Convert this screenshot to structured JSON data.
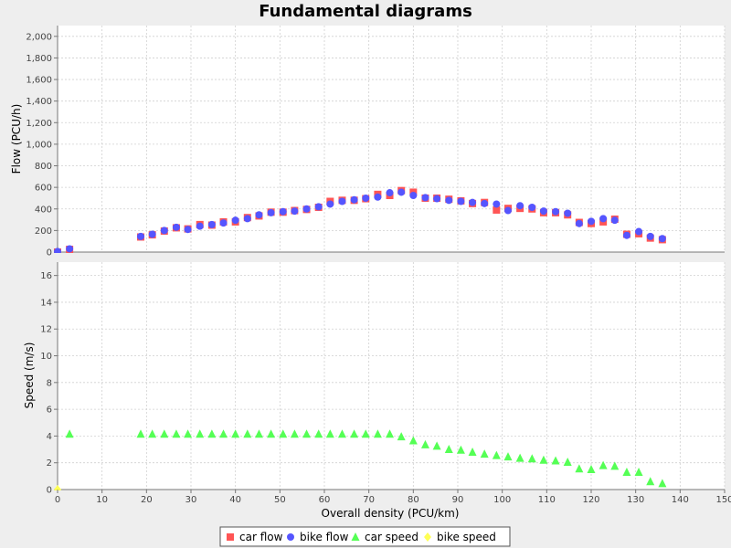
{
  "chart_data": [
    {
      "type": "scatter",
      "title": "Fundamental diagrams",
      "xlabel": "Overall density (PCU/km)",
      "ylabel": "Flow (PCU/h)",
      "xlim": [
        0,
        150
      ],
      "ylim": [
        0,
        2100
      ],
      "x_ticks": [
        "0",
        "10",
        "20",
        "30",
        "40",
        "50",
        "60",
        "70",
        "80",
        "90",
        "100",
        "110",
        "120",
        "130",
        "140",
        "150"
      ],
      "y_ticks": [
        "0",
        "200",
        "400",
        "600",
        "800",
        "1,000",
        "1,200",
        "1,400",
        "1,600",
        "1,800",
        "2,000"
      ],
      "grid": true,
      "series": [
        {
          "name": "car flow",
          "color": "#ff5555",
          "marker": "square",
          "points": [
            [
              0,
              0
            ],
            [
              2.7,
              25
            ],
            [
              18.7,
              140
            ],
            [
              21.3,
              160
            ],
            [
              24,
              195
            ],
            [
              26.7,
              225
            ],
            [
              29.3,
              215
            ],
            [
              32,
              255
            ],
            [
              34.7,
              250
            ],
            [
              37.3,
              280
            ],
            [
              40,
              280
            ],
            [
              42.7,
              320
            ],
            [
              45.3,
              335
            ],
            [
              48,
              370
            ],
            [
              50.7,
              370
            ],
            [
              53.3,
              385
            ],
            [
              56,
              395
            ],
            [
              58.7,
              415
            ],
            [
              61.3,
              470
            ],
            [
              64,
              480
            ],
            [
              66.7,
              480
            ],
            [
              69.3,
              495
            ],
            [
              72,
              535
            ],
            [
              74.7,
              525
            ],
            [
              77.3,
              570
            ],
            [
              80,
              555
            ],
            [
              82.7,
              500
            ],
            [
              85.3,
              500
            ],
            [
              88,
              490
            ],
            [
              90.7,
              475
            ],
            [
              93.3,
              450
            ],
            [
              96,
              460
            ],
            [
              98.7,
              390
            ],
            [
              101.3,
              405
            ],
            [
              104,
              405
            ],
            [
              106.7,
              400
            ],
            [
              109.3,
              365
            ],
            [
              112,
              365
            ],
            [
              114.7,
              345
            ],
            [
              117.3,
              275
            ],
            [
              120,
              265
            ],
            [
              122.7,
              280
            ],
            [
              125.3,
              305
            ],
            [
              128,
              165
            ],
            [
              130.7,
              170
            ],
            [
              133.3,
              130
            ],
            [
              136,
              115
            ]
          ]
        },
        {
          "name": "bike flow",
          "color": "#5555ff",
          "marker": "circle",
          "points": [
            [
              0,
              5
            ],
            [
              2.7,
              30
            ],
            [
              18.7,
              145
            ],
            [
              21.3,
              165
            ],
            [
              24,
              200
            ],
            [
              26.7,
              230
            ],
            [
              29.3,
              210
            ],
            [
              32,
              240
            ],
            [
              34.7,
              255
            ],
            [
              37.3,
              270
            ],
            [
              40,
              295
            ],
            [
              42.7,
              310
            ],
            [
              45.3,
              345
            ],
            [
              48,
              365
            ],
            [
              50.7,
              375
            ],
            [
              53.3,
              380
            ],
            [
              56,
              400
            ],
            [
              58.7,
              420
            ],
            [
              61.3,
              445
            ],
            [
              64,
              470
            ],
            [
              66.7,
              485
            ],
            [
              69.3,
              500
            ],
            [
              72,
              510
            ],
            [
              74.7,
              550
            ],
            [
              77.3,
              555
            ],
            [
              80,
              525
            ],
            [
              82.7,
              505
            ],
            [
              85.3,
              495
            ],
            [
              88,
              480
            ],
            [
              90.7,
              470
            ],
            [
              93.3,
              460
            ],
            [
              96,
              450
            ],
            [
              98.7,
              445
            ],
            [
              101.3,
              385
            ],
            [
              104,
              430
            ],
            [
              106.7,
              415
            ],
            [
              109.3,
              380
            ],
            [
              112,
              375
            ],
            [
              114.7,
              360
            ],
            [
              117.3,
              265
            ],
            [
              120,
              285
            ],
            [
              122.7,
              310
            ],
            [
              125.3,
              295
            ],
            [
              128,
              155
            ],
            [
              130.7,
              190
            ],
            [
              133.3,
              145
            ],
            [
              136,
              125
            ]
          ]
        }
      ]
    },
    {
      "type": "scatter",
      "xlabel": "Overall density (PCU/km)",
      "ylabel": "Speed (m/s)",
      "xlim": [
        0,
        150
      ],
      "ylim": [
        0,
        17
      ],
      "y_ticks": [
        "0",
        "2",
        "4",
        "6",
        "8",
        "10",
        "12",
        "14",
        "16"
      ],
      "grid": true,
      "series": [
        {
          "name": "car speed",
          "color": "#55ff55",
          "marker": "triangle",
          "points": [
            [
              2.7,
              4.15
            ],
            [
              18.7,
              4.15
            ],
            [
              21.3,
              4.15
            ],
            [
              24,
              4.15
            ],
            [
              26.7,
              4.15
            ],
            [
              29.3,
              4.15
            ],
            [
              32,
              4.15
            ],
            [
              34.7,
              4.15
            ],
            [
              37.3,
              4.15
            ],
            [
              40,
              4.15
            ],
            [
              42.7,
              4.15
            ],
            [
              45.3,
              4.15
            ],
            [
              48,
              4.15
            ],
            [
              50.7,
              4.15
            ],
            [
              53.3,
              4.15
            ],
            [
              56,
              4.15
            ],
            [
              58.7,
              4.15
            ],
            [
              61.3,
              4.15
            ],
            [
              64,
              4.15
            ],
            [
              66.7,
              4.15
            ],
            [
              69.3,
              4.15
            ],
            [
              72,
              4.15
            ],
            [
              74.7,
              4.15
            ],
            [
              77.3,
              3.95
            ],
            [
              80,
              3.65
            ],
            [
              82.7,
              3.35
            ],
            [
              85.3,
              3.25
            ],
            [
              88,
              3.0
            ],
            [
              90.7,
              2.95
            ],
            [
              93.3,
              2.8
            ],
            [
              96,
              2.65
            ],
            [
              98.7,
              2.55
            ],
            [
              101.3,
              2.45
            ],
            [
              104,
              2.35
            ],
            [
              106.7,
              2.3
            ],
            [
              109.3,
              2.2
            ],
            [
              112,
              2.15
            ],
            [
              114.7,
              2.05
            ],
            [
              117.3,
              1.55
            ],
            [
              120,
              1.5
            ],
            [
              122.7,
              1.8
            ],
            [
              125.3,
              1.75
            ],
            [
              128,
              1.3
            ],
            [
              130.7,
              1.3
            ],
            [
              133.3,
              0.6
            ],
            [
              136,
              0.45
            ]
          ]
        },
        {
          "name": "bike speed",
          "color": "#ffff55",
          "marker": "diamond",
          "points": [
            [
              0,
              0
            ]
          ]
        }
      ]
    }
  ],
  "legend": {
    "placement": "bottom",
    "entries": [
      "car flow",
      "bike flow",
      "car speed",
      "bike speed"
    ]
  }
}
